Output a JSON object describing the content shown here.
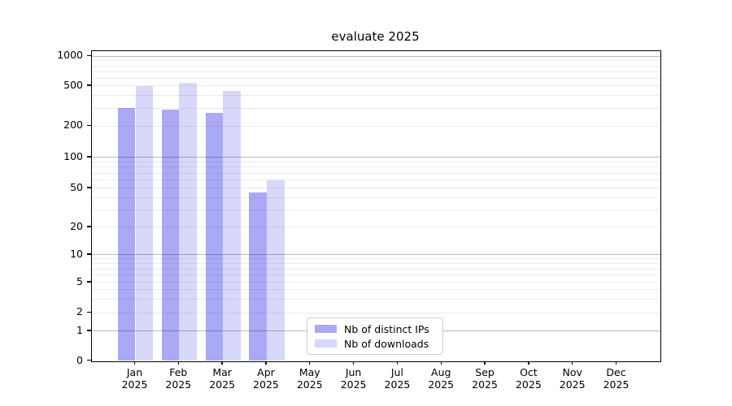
{
  "title": "evaluate 2025",
  "legend": {
    "items": [
      {
        "label": "Nb of distinct IPs",
        "color": "#a9a9f5"
      },
      {
        "label": "Nb of downloads",
        "color": "#d8d8fa"
      }
    ],
    "border_color": "#cccccc"
  },
  "chart_data": {
    "type": "bar",
    "title": "evaluate 2025",
    "categories": [
      "Jan",
      "Feb",
      "Mar",
      "Apr",
      "May",
      "Jun",
      "Jul",
      "Aug",
      "Sep",
      "Oct",
      "Nov",
      "Dec"
    ],
    "year": "2025",
    "series": [
      {
        "name": "Nb of distinct IPs",
        "color": "#a9a9f5",
        "values": [
          300,
          290,
          270,
          45,
          0,
          0,
          0,
          0,
          0,
          0,
          0,
          0
        ]
      },
      {
        "name": "Nb of downloads",
        "color": "#d8d8fa",
        "values": [
          500,
          535,
          450,
          60,
          0,
          0,
          0,
          0,
          0,
          0,
          0,
          0
        ]
      }
    ],
    "xlabel": "",
    "ylabel": "",
    "y_axis": {
      "scale": "symlog-like",
      "ticks": [
        0,
        1,
        2,
        5,
        10,
        20,
        50,
        100,
        200,
        500,
        1000
      ],
      "range": [
        0,
        1100
      ]
    },
    "y_scale_anchors": [
      {
        "v": 0,
        "f": 0.0
      },
      {
        "v": 1,
        "f": 0.0965
      },
      {
        "v": 2,
        "f": 0.1552
      },
      {
        "v": 5,
        "f": 0.2537
      },
      {
        "v": 10,
        "f": 0.3429
      },
      {
        "v": 20,
        "f": 0.4312
      },
      {
        "v": 50,
        "f": 0.5578
      },
      {
        "v": 100,
        "f": 0.6574
      },
      {
        "v": 200,
        "f": 0.7581
      },
      {
        "v": 500,
        "f": 0.8873
      },
      {
        "v": 1000,
        "f": 0.9835
      },
      {
        "v": 1100,
        "f": 1.0
      }
    ],
    "gridlines": {
      "strong": [
        1,
        10,
        100,
        1000
      ],
      "faint": [
        2,
        3,
        4,
        5,
        6,
        7,
        8,
        9,
        20,
        30,
        40,
        50,
        60,
        70,
        80,
        90,
        200,
        300,
        400,
        500,
        600,
        700,
        800,
        900
      ]
    },
    "grid": "on",
    "grid_above_bars": true,
    "legend_position": "lower center",
    "colors": {
      "background": "#ffffff",
      "spine": "#000000"
    }
  }
}
